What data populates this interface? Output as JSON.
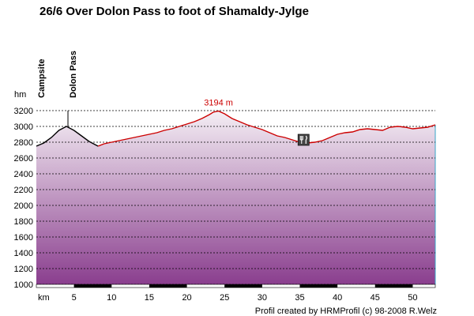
{
  "title": "26/6 Over Dolon Pass to foot of Shamaldy-Jylge",
  "credit": "Profil created by HRMProfil (c) 98-2008 R.Welz",
  "colors": {
    "line_main": "#cc0000",
    "line_start": "#000000",
    "fill_top": "#f4eef4",
    "fill_bottom": "#8a3e8e",
    "grid": "#000000",
    "axis_band": "#000000"
  },
  "chart_data": {
    "type": "area",
    "xlabel": "km",
    "ylabel": "hm",
    "xlim": [
      0,
      53
    ],
    "ylim": [
      1000,
      3200
    ],
    "x_ticks": [
      5,
      10,
      15,
      20,
      25,
      30,
      35,
      40,
      45,
      50
    ],
    "y_ticks": [
      1000,
      1200,
      1400,
      1600,
      1800,
      2000,
      2200,
      2400,
      2600,
      2800,
      3000,
      3200
    ],
    "grid": true,
    "series": [
      {
        "name": "",
        "color": "#000000",
        "x": [
          0,
          1,
          2,
          3,
          4,
          5,
          6,
          7,
          8.2
        ],
        "y": [
          2750,
          2790,
          2860,
          2950,
          3000,
          2950,
          2880,
          2810,
          2750
        ]
      },
      {
        "name": "",
        "color": "#cc0000",
        "x": [
          8.2,
          9,
          10,
          11,
          12,
          13,
          14,
          15,
          16,
          17,
          18,
          19,
          20,
          21,
          22,
          23,
          23.5,
          24.2,
          25,
          26,
          27,
          28,
          29,
          30,
          31,
          32,
          33,
          34,
          35,
          36,
          37,
          38,
          39,
          40,
          41,
          42,
          43,
          44,
          45,
          46,
          47,
          48,
          49,
          50,
          51,
          52,
          53
        ],
        "y": [
          2750,
          2780,
          2800,
          2820,
          2840,
          2860,
          2880,
          2900,
          2920,
          2950,
          2970,
          3000,
          3030,
          3060,
          3100,
          3150,
          3180,
          3194,
          3160,
          3100,
          3060,
          3020,
          2990,
          2960,
          2920,
          2880,
          2860,
          2830,
          2800,
          2790,
          2800,
          2820,
          2860,
          2900,
          2920,
          2930,
          2960,
          2970,
          2960,
          2950,
          2990,
          3000,
          2990,
          2970,
          2980,
          2990,
          3020
        ]
      }
    ],
    "annotations": [
      {
        "text": "Campsite",
        "x": 0
      },
      {
        "text": "Dolon Pass",
        "x": 4.2
      },
      {
        "text": "3194 m",
        "x": 24.2,
        "y": 3194
      }
    ],
    "markers": [
      {
        "icon": "restaurant-icon",
        "x": 35.5,
        "y": 2830
      }
    ]
  }
}
